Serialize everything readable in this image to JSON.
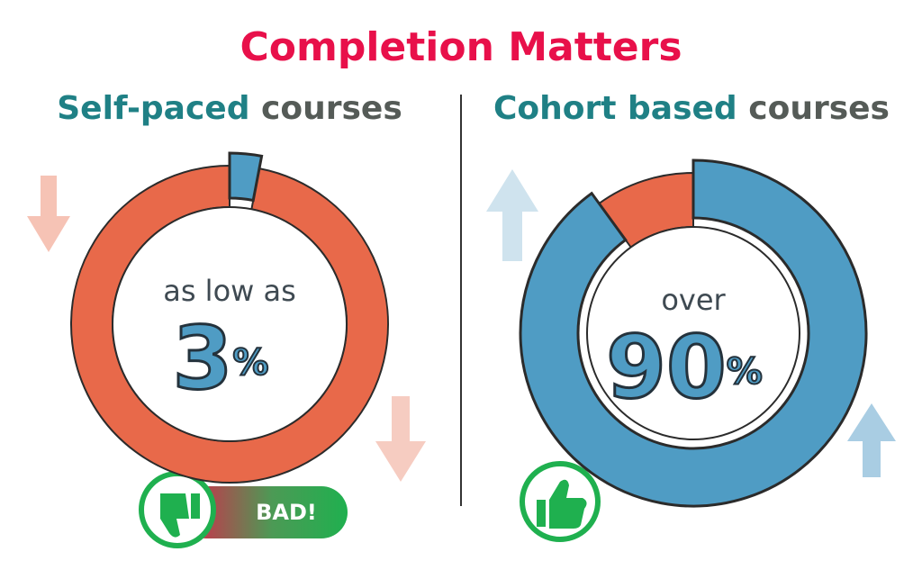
{
  "title": "Completion Matters",
  "panels": [
    {
      "heading": [
        "Self-paced",
        "courses"
      ],
      "caption": "as low as",
      "value": 3,
      "unit": "%",
      "badge": "BAD!",
      "color": "#4f9cc4",
      "rest_color": "#e8694a"
    },
    {
      "heading": [
        "Cohort based",
        "courses"
      ],
      "caption": "over",
      "value": 90,
      "unit": "%",
      "color": "#4f9cc4",
      "rest_color": "#e8694a"
    }
  ]
}
